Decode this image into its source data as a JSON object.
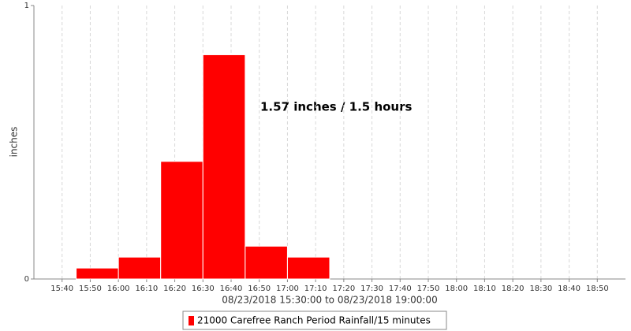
{
  "chart_data": {
    "type": "histogram",
    "y_label": "inches",
    "x_label": "08/23/2018 15:30:00 to 08/23/2018 19:00:00",
    "annotation": "1.57 inches / 1.5 hours",
    "bins": [
      "15:45",
      "16:00",
      "16:15",
      "16:30",
      "16:45",
      "17:00",
      "17:15"
    ],
    "series": [
      {
        "name": "21000 Carefree Ranch Period Rainfall/15 minutes",
        "color": "#ff0000",
        "values": [
          0.04,
          0.08,
          0.43,
          0.82,
          0.12,
          0.08
        ]
      }
    ],
    "xlim": [
      "15:30",
      "19:00"
    ],
    "xticks": [
      "15:40",
      "15:50",
      "16:00",
      "16:10",
      "16:20",
      "16:30",
      "16:40",
      "16:50",
      "17:00",
      "17:10",
      "17:20",
      "17:30",
      "17:40",
      "17:50",
      "18:00",
      "18:10",
      "18:20",
      "18:30",
      "18:40",
      "18:50"
    ],
    "ylim": [
      0,
      1
    ],
    "yticks": [
      0,
      1
    ],
    "grid": true
  }
}
